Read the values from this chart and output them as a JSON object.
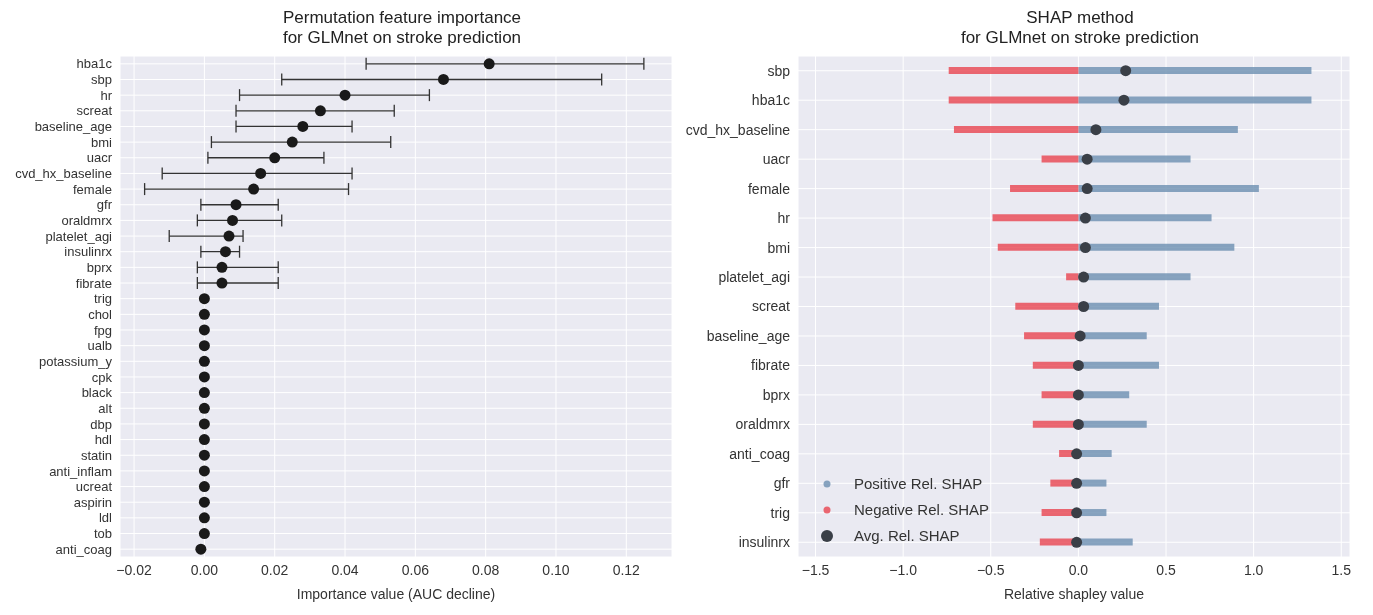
{
  "chart_data": [
    {
      "type": "scatter",
      "orientation": "horizontal",
      "title": "Permutation feature importance\nfor GLMnet on stroke prediction",
      "xlabel": "Importance value (AUC decline)",
      "color": "#1a1a1a",
      "marker": "circle",
      "grid": true,
      "categories": [
        "hba1c",
        "sbp",
        "hr",
        "screat",
        "baseline_age",
        "bmi",
        "uacr",
        "cvd_hx_baseline",
        "female",
        "gfr",
        "oraldmrx",
        "platelet_agi",
        "insulinrx",
        "bprx",
        "fibrate",
        "trig",
        "chol",
        "fpg",
        "ualb",
        "potassium_y",
        "cpk",
        "black",
        "alt",
        "dbp",
        "hdl",
        "statin",
        "anti_inflam",
        "ucreat",
        "aspirin",
        "ldl",
        "tob",
        "anti_coag"
      ],
      "values": [
        0.081,
        0.068,
        0.04,
        0.033,
        0.028,
        0.025,
        0.02,
        0.016,
        0.014,
        0.009,
        0.008,
        0.007,
        0.006,
        0.005,
        0.005,
        0.0,
        0,
        0,
        0,
        0,
        0,
        0,
        0,
        0,
        0,
        0,
        0,
        0,
        0,
        0,
        0,
        -0.001
      ],
      "errors": [
        [
          0.046,
          0.125
        ],
        [
          0.022,
          0.113
        ],
        [
          0.01,
          0.064
        ],
        [
          0.009,
          0.054
        ],
        [
          0.009,
          0.042
        ],
        [
          0.002,
          0.053
        ],
        [
          0.001,
          0.034
        ],
        [
          -0.012,
          0.042
        ],
        [
          -0.017,
          0.041
        ],
        [
          -0.001,
          0.021
        ],
        [
          -0.002,
          0.022
        ],
        [
          -0.01,
          0.011
        ],
        [
          -0.001,
          0.01
        ],
        [
          -0.002,
          0.021
        ],
        [
          -0.002,
          0.021
        ],
        null,
        null,
        null,
        null,
        null,
        null,
        null,
        null,
        null,
        null,
        null,
        null,
        null,
        null,
        null,
        null,
        null
      ],
      "xlim": [
        -0.024,
        0.133
      ],
      "xticks": [
        {
          "value": -0.02,
          "label": "−0.02"
        },
        {
          "value": 0,
          "label": "0.00"
        },
        {
          "value": 0.02,
          "label": "0.02"
        },
        {
          "value": 0.04,
          "label": "0.04"
        },
        {
          "value": 0.06,
          "label": "0.06"
        },
        {
          "value": 0.08,
          "label": "0.08"
        },
        {
          "value": 0.1,
          "label": "0.10"
        },
        {
          "value": 0.12,
          "label": "0.12"
        }
      ]
    },
    {
      "type": "bar",
      "orientation": "horizontal",
      "stacked": true,
      "title": "SHAP method\nfor GLMnet on stroke prediction",
      "xlabel": "Relative shapley value",
      "grid": true,
      "legend": "bottom left",
      "marker": "circle",
      "categories": [
        "sbp",
        "hba1c",
        "cvd_hx_baseline",
        "uacr",
        "female",
        "hr",
        "bmi",
        "platelet_agi",
        "screat",
        "baseline_age",
        "fibrate",
        "bprx",
        "oraldmrx",
        "anti_coag",
        "gfr",
        "trig",
        "insulinrx"
      ],
      "series": [
        {
          "name": "Positive Rel. SHAP",
          "color": "#6b8fb0",
          "values": [
            1.33,
            1.33,
            0.91,
            0.64,
            1.03,
            0.76,
            0.89,
            0.64,
            0.46,
            0.39,
            0.46,
            0.29,
            0.39,
            0.19,
            0.16,
            0.16,
            0.31
          ]
        },
        {
          "name": "Negative Rel. SHAP",
          "color": "#e8434f",
          "values": [
            -0.74,
            -0.74,
            -0.71,
            -0.21,
            -0.39,
            -0.49,
            -0.46,
            -0.07,
            -0.36,
            -0.31,
            -0.26,
            -0.21,
            -0.26,
            -0.11,
            -0.16,
            -0.21,
            -0.22
          ]
        },
        {
          "name": "Avg. Rel. SHAP",
          "type": "scatter",
          "color": "#3a3f47",
          "values": [
            0.27,
            0.26,
            0.1,
            0.05,
            0.05,
            0.04,
            0.04,
            0.03,
            0.03,
            0.01,
            0.0,
            0.0,
            0.0,
            -0.01,
            -0.01,
            -0.01,
            -0.01
          ]
        }
      ],
      "xlim": [
        -1.6,
        1.55
      ],
      "xticks": [
        {
          "value": -1.5,
          "label": "−1.5"
        },
        {
          "value": -1,
          "label": "−1.0"
        },
        {
          "value": -0.5,
          "label": "−0.5"
        },
        {
          "value": 0,
          "label": "0.0"
        },
        0.5,
        {
          "value": 1,
          "label": "1.0"
        },
        1.5
      ]
    }
  ]
}
